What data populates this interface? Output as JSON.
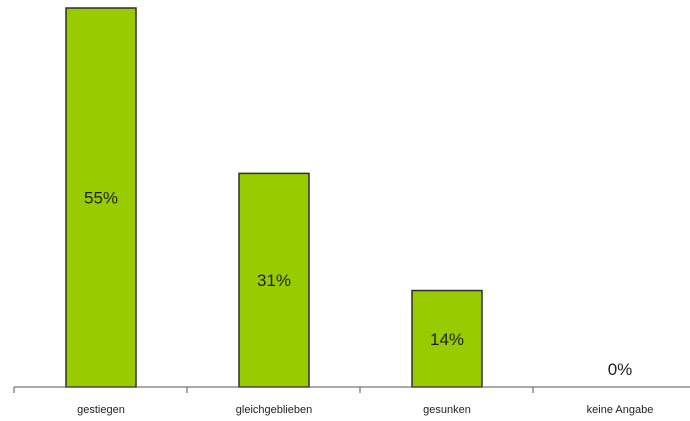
{
  "chart_data": {
    "type": "bar",
    "categories": [
      "gestiegen",
      "gleichgeblieben",
      "gesunken",
      "keine Angabe"
    ],
    "values": [
      55,
      31,
      14,
      0
    ],
    "data_labels": [
      "55%",
      "31%",
      "14%",
      "0%"
    ],
    "title": "",
    "xlabel": "",
    "ylabel": "",
    "ylim": [
      0,
      55
    ],
    "grid": false,
    "legend": "none",
    "bar_color": "#99cc00",
    "bar_edge_color": "#2f2f2f"
  }
}
